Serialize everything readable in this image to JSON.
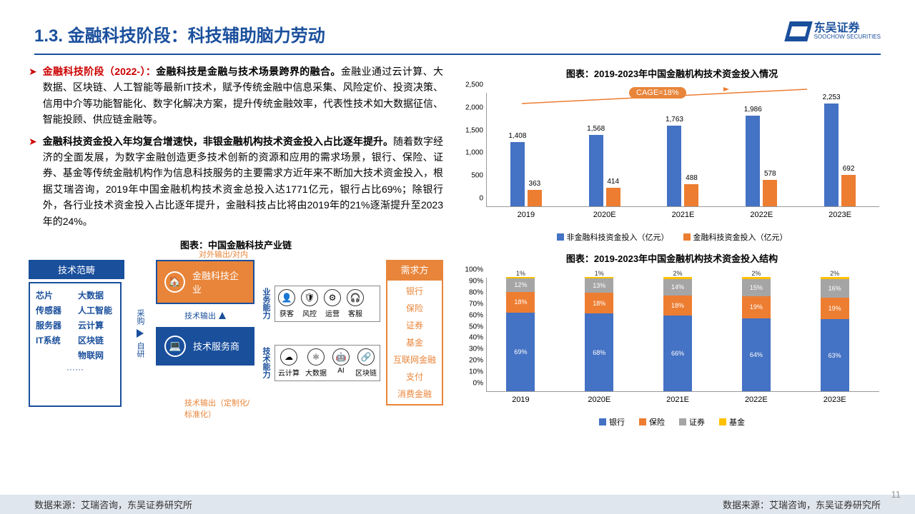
{
  "header": {
    "title": "1.3. 金融科技阶段：科技辅助脑力劳动",
    "logo_cn": "东吴证券",
    "logo_en": "SOOCHOW SECURITIES"
  },
  "bullets": [
    {
      "red": "金融科技阶段（2022-）：",
      "bold": "金融科技是金融与技术场景跨界的融合。",
      "rest": "金融业通过云计算、大数据、区块链、人工智能等最新IT技术，赋予传统金融中信息采集、风险定价、投资决策、信用中介等功能智能化、数字化解决方案，提升传统金融效率，代表性技术如大数据征信、智能投顾、供应链金融等。"
    },
    {
      "bold": "金融科技资金投入年均复合增速快，非银金融机构技术资金投入占比逐年提升。",
      "rest": "随着数字经济的全面发展，为数字金融创造更多技术创新的资源和应用的需求场景，银行、保险、证券、基金等传统金融机构作为信息科技服务的主要需求方近年来不断加大技术资金投入，根据艾瑞咨询，2019年中国金融机构技术资金总投入达1771亿元，银行占比69%；除银行外，各行业技术资金投入占比逐年提升，金融科技占比将由2019年的21%逐渐提升至2023年的24%。"
    }
  ],
  "diagram": {
    "title": "图表：中国金融科技产业链",
    "tech_scope": "技术范畴",
    "tech_items": [
      "芯片",
      "大数据",
      "传感器",
      "人工智能",
      "服务器",
      "云计算",
      "IT系统",
      "区块链",
      "",
      "物联网"
    ],
    "tech_dots": "······",
    "purchase": "采购",
    "self_dev": "自研",
    "fintech_co": "金融科技企业",
    "tech_provider": "技术服务商",
    "tech_output": "技术输出",
    "ext_int": "对外输出/对内赋能",
    "tech_out_custom": "技术输出（定制化/标准化）",
    "biz_cap": "业务能力",
    "tech_cap": "技术能力",
    "biz_skills": [
      {
        "icon": "👤",
        "label": "获客"
      },
      {
        "icon": "🛡",
        "label": "风控"
      },
      {
        "icon": "⚙",
        "label": "运营"
      },
      {
        "icon": "🎧",
        "label": "客服"
      }
    ],
    "tech_skills": [
      {
        "icon": "☁",
        "label": "云计算"
      },
      {
        "icon": "⚛",
        "label": "大数据"
      },
      {
        "icon": "🤖",
        "label": "AI"
      },
      {
        "icon": "🔗",
        "label": "区块链"
      }
    ],
    "demand": "需求方",
    "demand_items": [
      "银行",
      "保险",
      "证券",
      "基金",
      "互联网金融",
      "支付",
      "消费金融"
    ]
  },
  "chart1": {
    "title": "图表：2019-2023年中国金融机构技术资金投入情况",
    "cage": "CAGE=18%",
    "ymax": 2500,
    "ystep": 500,
    "categories": [
      "2019",
      "2020E",
      "2021E",
      "2022E",
      "2023E"
    ],
    "series1": {
      "label": "非金融科技资金投入（亿元）",
      "color": "#4472c4",
      "values": [
        1408,
        1568,
        1763,
        1986,
        2253
      ]
    },
    "series2": {
      "label": "金融科技资金投入（亿元）",
      "color": "#ed7d31",
      "values": [
        363,
        414,
        488,
        578,
        692
      ]
    }
  },
  "chart2": {
    "title": "图表：2019-2023年中国金融机构技术资金投入结构",
    "ymax": 100,
    "ystep": 10,
    "categories": [
      "2019",
      "2020E",
      "2021E",
      "2022E",
      "2023E"
    ],
    "stacks": [
      {
        "label": "银行",
        "color": "#4472c4"
      },
      {
        "label": "保险",
        "color": "#ed7d31"
      },
      {
        "label": "证券",
        "color": "#a5a5a5"
      },
      {
        "label": "基金",
        "color": "#ffc000"
      }
    ],
    "data": [
      [
        69,
        18,
        12,
        1
      ],
      [
        68,
        18,
        13,
        1
      ],
      [
        66,
        18,
        14,
        2
      ],
      [
        64,
        19,
        15,
        2
      ],
      [
        63,
        19,
        16,
        2
      ]
    ]
  },
  "footer": {
    "left": "数据来源：艾瑞咨询，东吴证券研究所",
    "right": "数据来源：艾瑞咨询，东吴证券研究所"
  },
  "page": "11"
}
